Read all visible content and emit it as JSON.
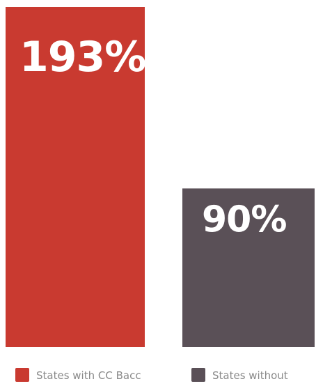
{
  "chart_data": {
    "type": "bar",
    "categories": [
      "States with CC Bacc",
      "States without"
    ],
    "values": [
      193,
      90
    ],
    "value_labels": [
      "193%",
      "90%"
    ],
    "colors": [
      "#c93a30",
      "#5a5057"
    ],
    "ylim": [
      0,
      200
    ],
    "grid": false,
    "legend_position": "bottom",
    "legend": [
      {
        "label": "States with CC Bacc",
        "color": "#c93a30"
      },
      {
        "label": "States without",
        "color": "#5a5057"
      }
    ]
  }
}
